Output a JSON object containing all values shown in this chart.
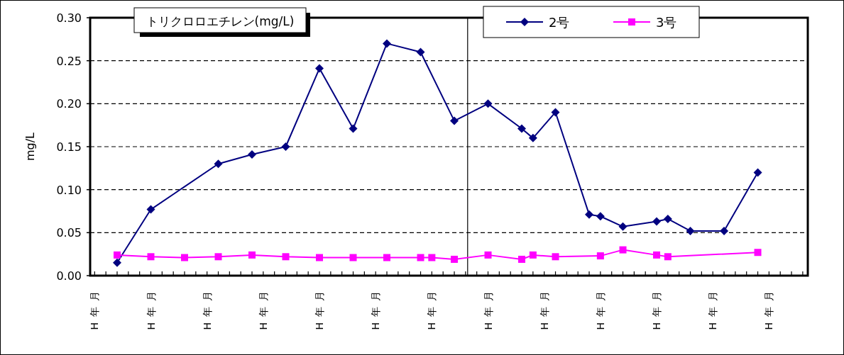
{
  "chart_data": {
    "type": "line",
    "title": "トリクロロエチレン(mg/L)",
    "ylabel": "mg/L",
    "categories": [
      "H年月",
      null,
      null,
      null,
      null,
      "H年月",
      null,
      null,
      null,
      null,
      "H年月",
      null,
      null,
      null,
      null,
      "H年月",
      null,
      null,
      null,
      null,
      "H年月",
      null,
      null,
      null,
      null,
      "H年月",
      null,
      null,
      null,
      null,
      "H年月",
      null,
      null,
      null,
      null,
      "H年月",
      null,
      null,
      null,
      null,
      "H年月",
      null,
      null,
      null,
      null,
      "H年月",
      null,
      null,
      null,
      null,
      "H年月",
      null,
      null,
      null,
      null,
      "H年月",
      null,
      null,
      null,
      null,
      "H年月",
      null,
      null,
      null
    ],
    "ylim": [
      0,
      0.3
    ],
    "yticks": [
      {
        "value": 0,
        "label": "0.00"
      },
      {
        "value": 0.05,
        "label": "0.05"
      },
      {
        "value": 0.1,
        "label": "0.10"
      },
      {
        "value": 0.15,
        "label": "0.15"
      },
      {
        "value": 0.2,
        "label": "0.20"
      },
      {
        "value": 0.25,
        "label": "0.25"
      },
      {
        "value": 0.3,
        "label": "0.30"
      }
    ],
    "grid": "y",
    "legend": "top",
    "line_style": "solid",
    "series": [
      {
        "name": "2号",
        "color": "#000080",
        "marker": "diamond",
        "values": [
          null,
          null,
          0.015,
          null,
          null,
          0.077,
          null,
          null,
          null,
          null,
          null,
          0.13,
          null,
          null,
          0.141,
          null,
          null,
          0.15,
          null,
          null,
          0.241,
          null,
          null,
          0.171,
          null,
          null,
          0.27,
          null,
          null,
          0.26,
          null,
          null,
          0.18,
          null,
          null,
          0.2,
          null,
          null,
          0.171,
          0.16,
          null,
          0.19,
          null,
          null,
          0.071,
          0.069,
          null,
          0.057,
          null,
          null,
          0.063,
          0.066,
          null,
          0.052,
          null,
          null,
          0.052,
          null,
          null,
          0.12,
          null,
          null,
          null,
          null
        ]
      },
      {
        "name": "3号",
        "color": "#ff00ff",
        "marker": "square",
        "values": [
          null,
          null,
          0.024,
          null,
          null,
          0.022,
          null,
          null,
          0.021,
          null,
          null,
          0.022,
          null,
          null,
          0.024,
          null,
          null,
          0.022,
          null,
          null,
          0.021,
          null,
          null,
          0.021,
          null,
          null,
          0.021,
          null,
          null,
          0.021,
          0.021,
          null,
          0.019,
          null,
          null,
          0.024,
          null,
          null,
          0.019,
          0.024,
          null,
          0.022,
          null,
          null,
          null,
          0.023,
          null,
          0.03,
          null,
          null,
          0.024,
          0.022,
          null,
          null,
          null,
          null,
          null,
          null,
          null,
          0.027,
          null,
          null,
          null,
          null
        ]
      }
    ]
  }
}
